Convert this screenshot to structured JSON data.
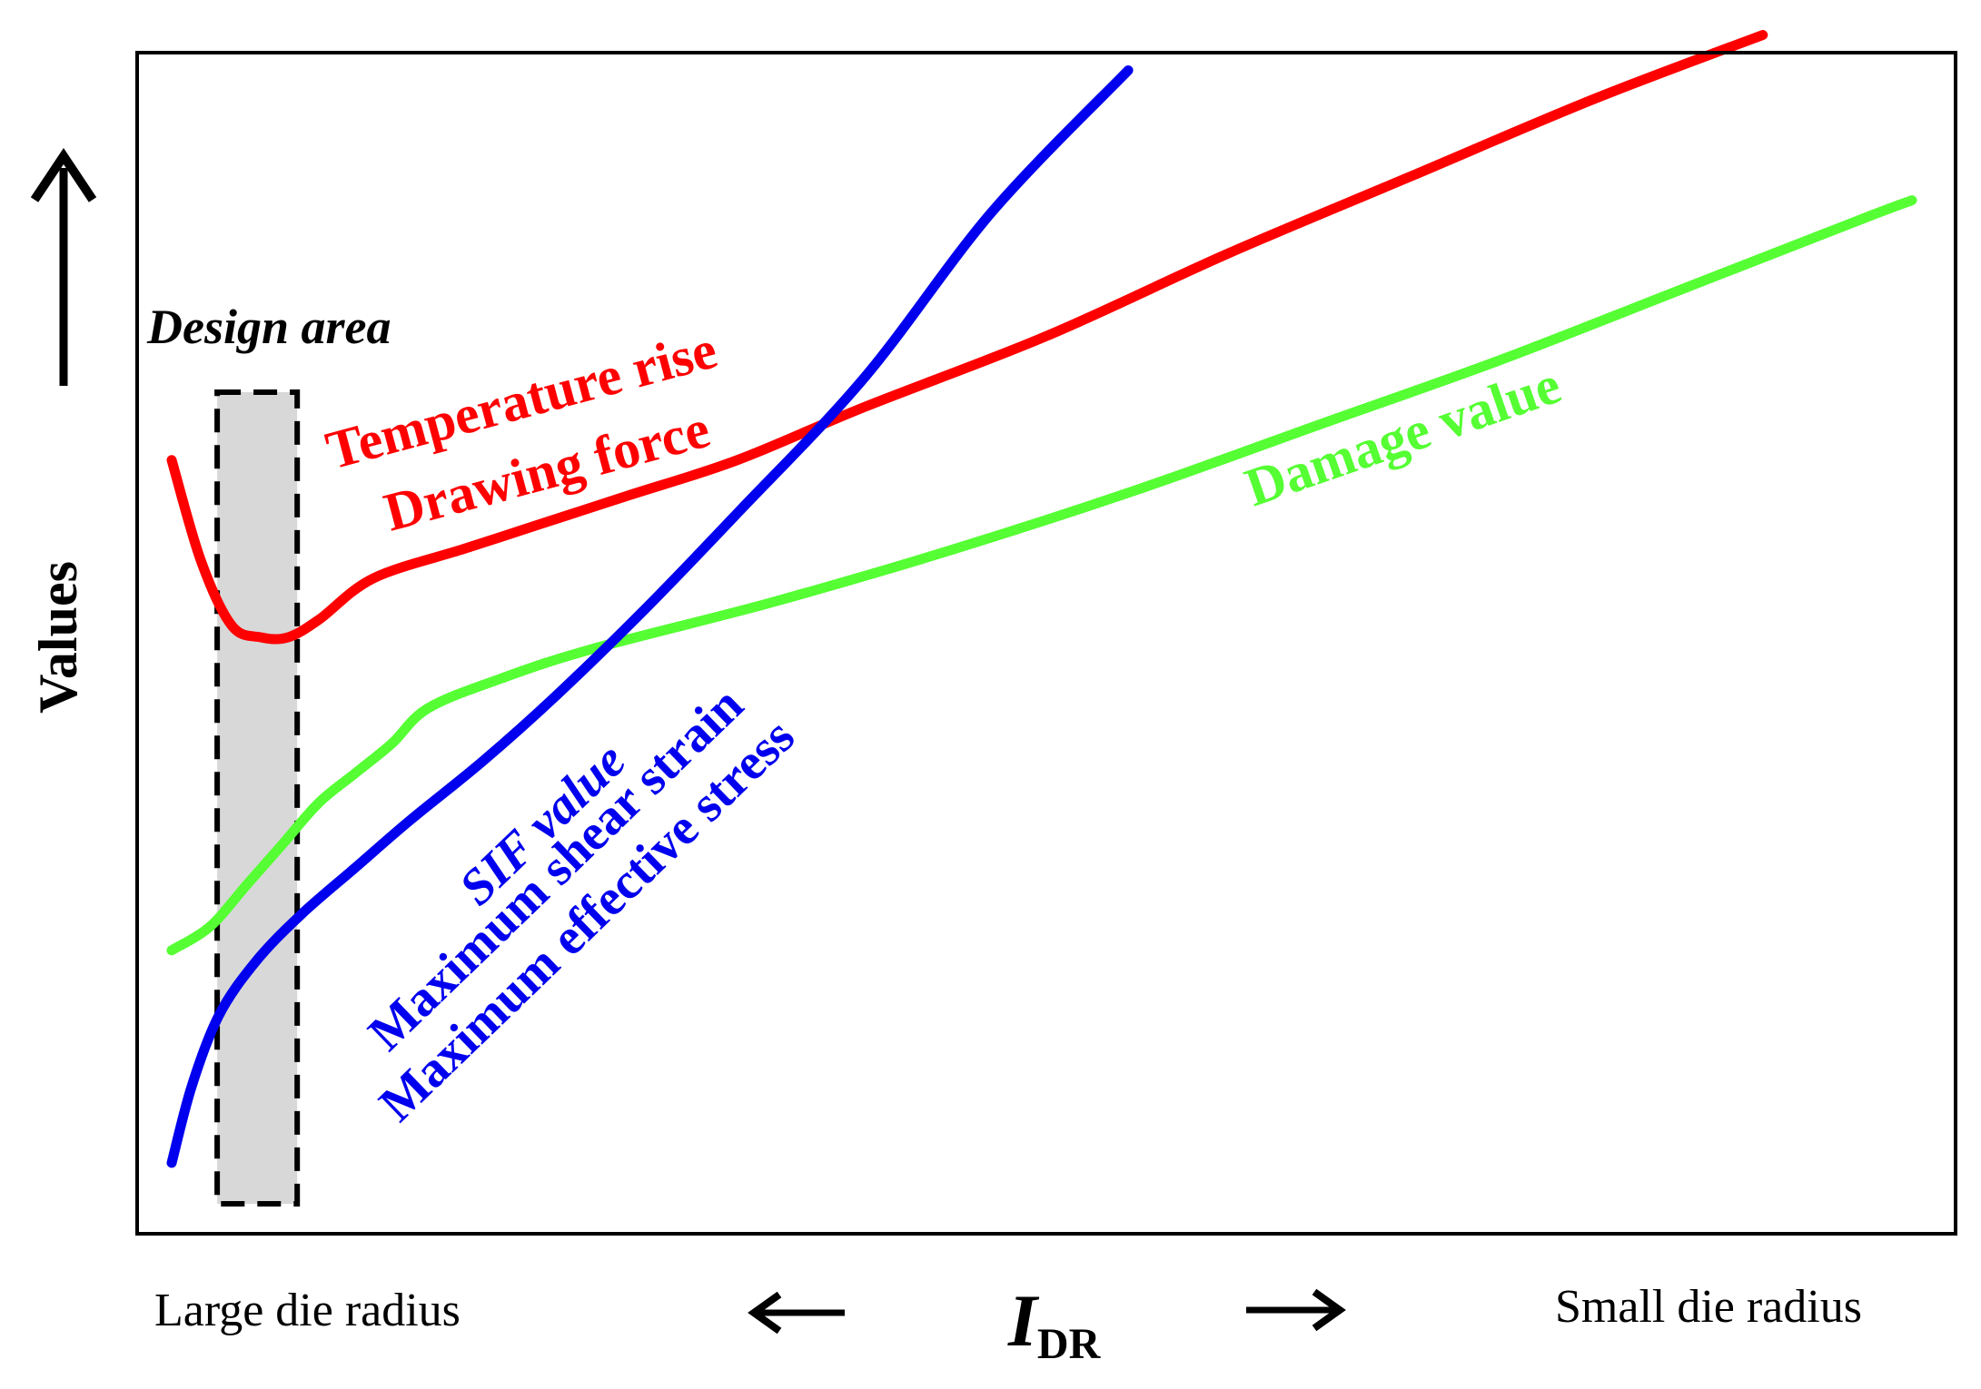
{
  "chart_data": {
    "type": "line",
    "title": "",
    "xlabel": {
      "main": "I",
      "subscript": "DR"
    },
    "ylabel": "Values",
    "x_left_label": "Large die radius",
    "x_right_label": "Small die radius",
    "xlim": [
      0,
      100
    ],
    "ylim": [
      0,
      100
    ],
    "grid": false,
    "design_area": {
      "label": "Design area",
      "x_range": [
        4.4,
        8.8
      ]
    },
    "series": [
      {
        "name": "Temperature rise / Drawing force",
        "color": "#ff0000",
        "labels": [
          "Temperature rise",
          "Drawing force"
        ],
        "x": [
          1.9,
          3.5,
          5.2,
          6.8,
          8.3,
          10.0,
          13.0,
          18.0,
          22.0,
          27.0,
          33.0,
          40.0,
          50.0,
          60.0,
          70.0,
          80.0,
          89.4
        ],
        "y": [
          65.5,
          57.0,
          51.5,
          50.5,
          50.5,
          52.0,
          55.5,
          58.0,
          60.0,
          62.5,
          65.5,
          70.0,
          76.0,
          83.0,
          89.5,
          96.0,
          101.5
        ]
      },
      {
        "name": "Damage value",
        "color": "#55ff33",
        "labels": [
          "Damage value"
        ],
        "x": [
          1.9,
          4.0,
          6.0,
          8.0,
          10.0,
          12.0,
          14.0,
          16.0,
          20.0,
          25.0,
          35.0,
          45.0,
          55.0,
          65.0,
          75.0,
          85.0,
          95.0,
          97.6
        ],
        "y": [
          24.0,
          26.0,
          29.5,
          33.0,
          36.5,
          39.0,
          41.5,
          44.5,
          47.0,
          49.5,
          53.5,
          58.0,
          63.0,
          68.5,
          74.0,
          80.0,
          86.0,
          87.5
        ]
      },
      {
        "name": "SIF value / Maximum shear strain / Maximum effective stress",
        "color": "#0000ee",
        "labels": [
          "SIF value",
          "Maximum shear strain",
          "Maximum effective stress"
        ],
        "x": [
          1.9,
          3.0,
          4.5,
          6.5,
          9.0,
          12.0,
          15.0,
          19.0,
          23.0,
          28.0,
          33.0,
          40.0,
          47.0,
          54.5
        ],
        "y": [
          6.0,
          12.5,
          18.5,
          23.0,
          27.0,
          31.0,
          35.0,
          40.0,
          45.5,
          53.0,
          61.0,
          72.5,
          86.5,
          98.5
        ]
      }
    ]
  }
}
